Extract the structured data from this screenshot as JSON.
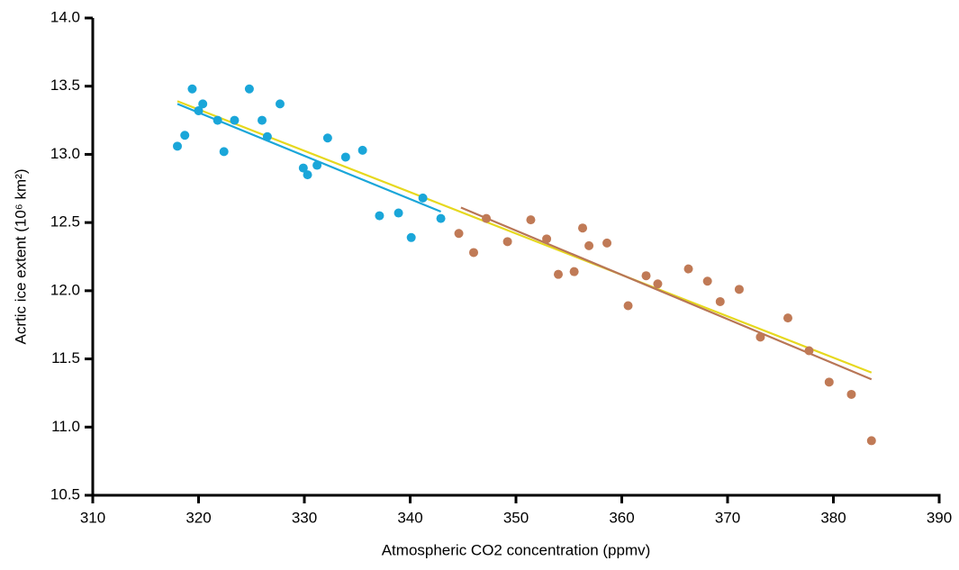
{
  "chart_data": {
    "type": "scatter",
    "x_label": "Atmospheric CO2 concentration (ppmv)",
    "y_label": "Acrtic ice extent (10⁶ km²)",
    "xlim": [
      310,
      390
    ],
    "xticks": [
      310,
      320,
      330,
      340,
      350,
      360,
      370,
      380,
      390
    ],
    "ylim": [
      10.5,
      14.0
    ],
    "yticks": [
      {
        "value": 10.5,
        "label": "10.5"
      },
      {
        "value": 11.0,
        "label": "11.0"
      },
      {
        "value": 11.5,
        "label": "11.5"
      },
      {
        "value": 12.0,
        "label": "12.0"
      },
      {
        "value": 12.5,
        "label": "12.5"
      },
      {
        "value": 13.0,
        "label": "13.0"
      },
      {
        "value": 13.5,
        "label": "13.5"
      },
      {
        "value": 14.0,
        "label": "14.0"
      }
    ],
    "grid": false,
    "series": [
      {
        "color": "#1aa6d9",
        "x": [
          318.0,
          318.7,
          319.4,
          320.0,
          320.4,
          321.8,
          322.4,
          323.4,
          324.8,
          326.0,
          326.5,
          327.7,
          329.9,
          330.3,
          331.2,
          332.2,
          333.9,
          335.5,
          337.1,
          338.9,
          340.1,
          341.2,
          342.9
        ],
        "values": [
          13.06,
          13.14,
          13.48,
          13.32,
          13.37,
          13.25,
          13.02,
          13.25,
          13.48,
          13.25,
          13.13,
          13.37,
          12.9,
          12.85,
          12.92,
          13.12,
          12.98,
          13.03,
          12.55,
          12.57,
          12.39,
          12.68,
          12.53
        ]
      },
      {
        "color": "#c07a56",
        "x": [
          344.6,
          346.0,
          347.2,
          349.2,
          351.4,
          352.9,
          354.0,
          355.5,
          356.3,
          356.9,
          358.6,
          360.6,
          362.3,
          363.4,
          366.3,
          368.1,
          369.3,
          371.1,
          373.1,
          375.7,
          377.7,
          379.6,
          381.7,
          383.6
        ],
        "values": [
          12.42,
          12.28,
          12.53,
          12.36,
          12.52,
          12.38,
          12.12,
          12.14,
          12.46,
          12.33,
          12.35,
          11.89,
          12.11,
          12.05,
          12.16,
          12.07,
          11.92,
          12.01,
          11.66,
          11.8,
          11.56,
          11.33,
          11.24,
          10.9
        ]
      }
    ],
    "lines": [
      {
        "color": "#1aa6d9",
        "x": [
          318.0,
          342.9
        ],
        "values": [
          13.37,
          12.58
        ]
      },
      {
        "color": "#e6d81e",
        "x": [
          318.0,
          383.6
        ],
        "values": [
          13.39,
          11.4
        ]
      },
      {
        "color": "#b87656",
        "x": [
          344.8,
          383.6
        ],
        "values": [
          12.61,
          11.35
        ]
      }
    ]
  }
}
